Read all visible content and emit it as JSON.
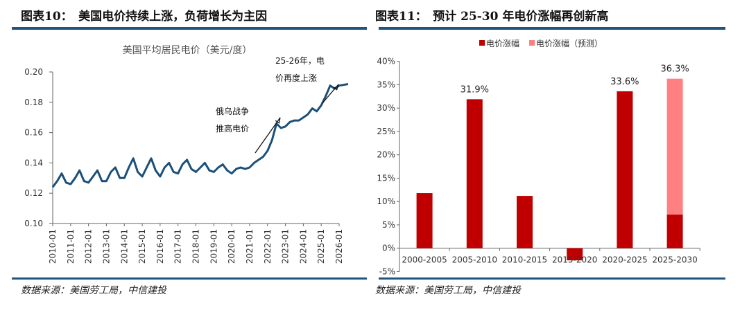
{
  "left": {
    "figure_title": "图表10：　美国电价持续上涨，负荷增长为主因",
    "source": "数据来源：美国劳工局，中信建投"
  },
  "right": {
    "figure_title": "图表11：　预计 25-30 年电价涨幅再创新高",
    "source": "数据来源：美国劳工局，中信建投"
  },
  "colors": {
    "rule": "#1f5582",
    "line": "#1a4f7a",
    "bar": "#c00000",
    "bar_forecast": "#ff8080"
  },
  "chart_data": [
    {
      "type": "line",
      "title": "美国平均居民电价（美元/度）",
      "ylim": [
        0.1,
        0.2
      ],
      "yticks": [
        "0.10",
        "0.12",
        "0.14",
        "0.16",
        "0.18",
        "0.20"
      ],
      "xticks": [
        "2010-01",
        "2011-01",
        "2012-01",
        "2013-01",
        "2014-01",
        "2015-01",
        "2016-01",
        "2017-01",
        "2018-01",
        "2019-01",
        "2020-01",
        "2021-01",
        "2022-01",
        "2023-01",
        "2024-01",
        "2025-01",
        "2026-01"
      ],
      "x": [
        "2010-01",
        "2010-04",
        "2010-07",
        "2010-10",
        "2011-01",
        "2011-04",
        "2011-07",
        "2011-10",
        "2012-01",
        "2012-04",
        "2012-07",
        "2012-10",
        "2013-01",
        "2013-04",
        "2013-07",
        "2013-10",
        "2014-01",
        "2014-04",
        "2014-07",
        "2014-10",
        "2015-01",
        "2015-04",
        "2015-07",
        "2015-10",
        "2016-01",
        "2016-04",
        "2016-07",
        "2016-10",
        "2017-01",
        "2017-04",
        "2017-07",
        "2017-10",
        "2018-01",
        "2018-04",
        "2018-07",
        "2018-10",
        "2019-01",
        "2019-04",
        "2019-07",
        "2019-10",
        "2020-01",
        "2020-04",
        "2020-07",
        "2020-10",
        "2021-01",
        "2021-04",
        "2021-07",
        "2021-10",
        "2022-01",
        "2022-04",
        "2022-07",
        "2022-10",
        "2023-01",
        "2023-04",
        "2023-07",
        "2023-10",
        "2024-01",
        "2024-04",
        "2024-07",
        "2024-10",
        "2025-01",
        "2025-04",
        "2025-07",
        "2025-10",
        "2026-01",
        "2026-07"
      ],
      "y": [
        0.124,
        0.128,
        0.133,
        0.127,
        0.126,
        0.13,
        0.135,
        0.128,
        0.127,
        0.131,
        0.135,
        0.128,
        0.128,
        0.134,
        0.137,
        0.13,
        0.13,
        0.137,
        0.143,
        0.134,
        0.131,
        0.137,
        0.143,
        0.135,
        0.131,
        0.137,
        0.14,
        0.134,
        0.133,
        0.139,
        0.142,
        0.136,
        0.134,
        0.137,
        0.14,
        0.135,
        0.134,
        0.137,
        0.139,
        0.135,
        0.133,
        0.136,
        0.137,
        0.136,
        0.137,
        0.14,
        0.142,
        0.144,
        0.148,
        0.155,
        0.166,
        0.163,
        0.164,
        0.167,
        0.168,
        0.168,
        0.17,
        0.172,
        0.176,
        0.174,
        0.178,
        0.184,
        0.191,
        0.189,
        0.191,
        0.192
      ],
      "annotations": [
        {
          "lines": [
            "俄乌战争",
            "推高电价"
          ]
        },
        {
          "lines": [
            "25-26年，电",
            "价再度上涨"
          ]
        }
      ]
    },
    {
      "type": "bar",
      "categories": [
        "2000-2005",
        "2005-2010",
        "2010-2015",
        "2015-2020",
        "2020-2025",
        "2025-2030"
      ],
      "series": [
        {
          "name": "电价涨幅",
          "values": [
            11.8,
            31.9,
            11.2,
            -2.6,
            33.6,
            7.2
          ]
        },
        {
          "name": "电价涨幅（预测）",
          "values": [
            0,
            0,
            0,
            0,
            0,
            29.1
          ]
        }
      ],
      "data_labels": [
        "",
        "31.9%",
        "",
        "",
        "33.6%",
        "36.3%"
      ],
      "ylim": [
        -5,
        40
      ],
      "yticks": [
        "-5%",
        "0%",
        "5%",
        "10%",
        "15%",
        "20%",
        "25%",
        "30%",
        "35%",
        "40%"
      ],
      "legend": "top"
    }
  ]
}
